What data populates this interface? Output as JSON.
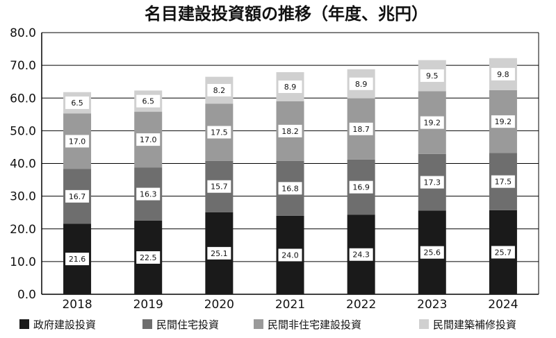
{
  "chart_data": {
    "type": "bar",
    "stacked": true,
    "title": "名目建設投資額の推移（年度、兆円）",
    "categories": [
      "2018",
      "2019",
      "2020",
      "2021",
      "2022",
      "2023",
      "2024"
    ],
    "ylim": [
      0,
      80
    ],
    "yticks": [
      "0.0",
      "10.0",
      "20.0",
      "30.0",
      "40.0",
      "50.0",
      "60.0",
      "70.0",
      "80.0"
    ],
    "grid": true,
    "legend_position": "bottom",
    "series": [
      {
        "name": "政府建設投資",
        "color": "#1a1a1a",
        "values": [
          21.6,
          22.5,
          25.1,
          24.0,
          24.3,
          25.6,
          25.7
        ],
        "labels": [
          "21.6",
          "22.5",
          "25.1",
          "24.0",
          "24.3",
          "25.6",
          "25.7"
        ]
      },
      {
        "name": "民間住宅投資",
        "color": "#6e6e6e",
        "values": [
          16.7,
          16.3,
          15.7,
          16.8,
          16.9,
          17.3,
          17.5
        ],
        "labels": [
          "16.7",
          "16.3",
          "15.7",
          "16.8",
          "16.9",
          "17.3",
          "17.5"
        ]
      },
      {
        "name": "民間非住宅建設投資",
        "color": "#9a9a9a",
        "values": [
          17.0,
          17.0,
          17.5,
          18.2,
          18.7,
          19.2,
          19.2
        ],
        "labels": [
          "17.0",
          "17.0",
          "17.5",
          "18.2",
          "18.7",
          "19.2",
          "19.2"
        ]
      },
      {
        "name": "民間建築補修投資",
        "color": "#d0d0d0",
        "values": [
          6.5,
          6.5,
          8.2,
          8.9,
          8.9,
          9.5,
          9.8
        ],
        "labels": [
          "6.5",
          "6.5",
          "8.2",
          "8.9",
          "8.9",
          "9.5",
          "9.8"
        ]
      }
    ]
  }
}
